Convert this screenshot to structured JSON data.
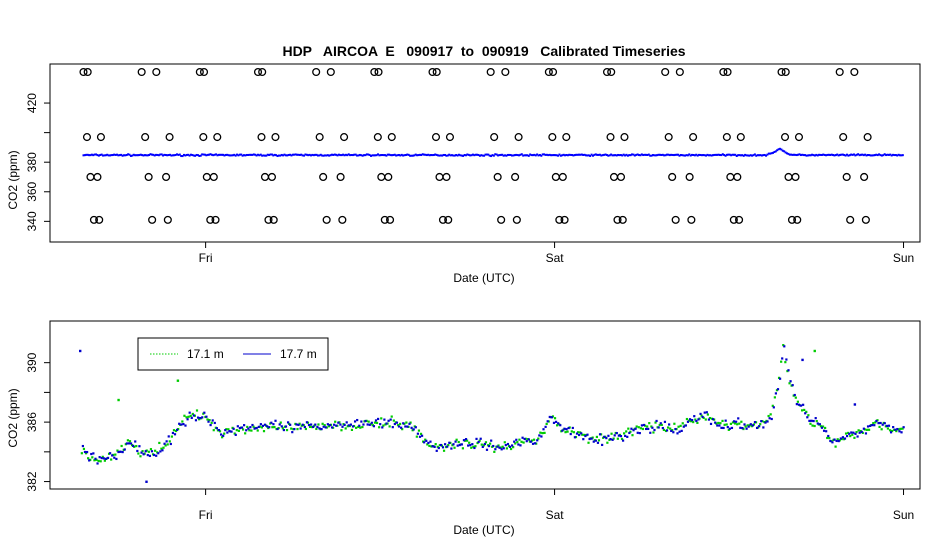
{
  "chart_data": [
    {
      "type": "scatter",
      "title": "HDP   AIRCOA  E   090917  to  090919   Calibrated Timeseries",
      "xlabel": "Date (UTC)",
      "ylabel": "CO2 (ppm)",
      "xlim": [
        -0.36,
        2.03
      ],
      "ylim": [
        335.5,
        441
      ],
      "x_ticks": [
        {
          "value": 0,
          "label": "Fri"
        },
        {
          "value": 1,
          "label": "Sat"
        },
        {
          "value": 2,
          "label": "Sun"
        }
      ],
      "y_ticks": [
        340,
        360,
        380,
        400,
        420
      ],
      "y_tick_labels": [
        "340",
        "360",
        "380",
        "420"
      ],
      "series": [
        {
          "role": "calibration-standards",
          "marker": "open-circle",
          "color": "#000000",
          "levels": [
            {
              "y": 441,
              "first_x": -0.35,
              "period": 0.1667,
              "count": 14,
              "offsets": [
                0,
                0.012
              ]
            },
            {
              "y": 397,
              "first_x": -0.34,
              "period": 0.1667,
              "count": 14,
              "offsets": [
                0,
                0.04
              ]
            },
            {
              "y": 370,
              "first_x": -0.33,
              "period": 0.1667,
              "count": 14,
              "offsets": [
                0,
                0.02
              ]
            },
            {
              "y": 341,
              "first_x": -0.32,
              "period": 0.1667,
              "count": 14,
              "offsets": [
                0,
                0.015
              ]
            }
          ]
        },
        {
          "role": "ambient",
          "marker": "dot",
          "color": "#0000ff",
          "baseline": 384.8
        }
      ]
    },
    {
      "type": "scatter",
      "title": "",
      "xlabel": "Date (UTC)",
      "ylabel": "CO2 (ppm)",
      "xlim": [
        -0.36,
        2.03
      ],
      "ylim": [
        381.5,
        392.4
      ],
      "x_ticks": [
        {
          "value": 0,
          "label": "Fri"
        },
        {
          "value": 1,
          "label": "Sat"
        },
        {
          "value": 2,
          "label": "Sun"
        }
      ],
      "y_ticks": [
        382,
        384,
        386,
        388,
        390
      ],
      "y_tick_labels": [
        "382",
        "386",
        "390"
      ],
      "legend": {
        "placement": "top-left"
      },
      "series": [
        {
          "name": "17.1 m",
          "color": "#00cc00",
          "line": "dotted"
        },
        {
          "name": "17.7 m",
          "color": "#0000cc",
          "line": "solid"
        }
      ],
      "profile": [
        [
          -0.36,
          384.2
        ],
        [
          -0.33,
          383.6
        ],
        [
          -0.29,
          383.5
        ],
        [
          -0.25,
          383.8
        ],
        [
          -0.22,
          384.8
        ],
        [
          -0.19,
          384.0
        ],
        [
          -0.16,
          383.8
        ],
        [
          -0.14,
          384.2
        ],
        [
          -0.11,
          384.6
        ],
        [
          -0.08,
          385.8
        ],
        [
          -0.05,
          386.3
        ],
        [
          -0.02,
          386.4
        ],
        [
          0.01,
          386.2
        ],
        [
          0.04,
          385.3
        ],
        [
          0.08,
          385.5
        ],
        [
          0.15,
          385.7
        ],
        [
          0.25,
          385.6
        ],
        [
          0.35,
          385.8
        ],
        [
          0.45,
          385.9
        ],
        [
          0.55,
          385.9
        ],
        [
          0.6,
          385.6
        ],
        [
          0.63,
          384.6
        ],
        [
          0.66,
          384.3
        ],
        [
          0.72,
          384.6
        ],
        [
          0.8,
          384.5
        ],
        [
          0.86,
          384.3
        ],
        [
          0.9,
          384.7
        ],
        [
          0.95,
          384.9
        ],
        [
          0.99,
          386.3
        ],
        [
          1.02,
          385.6
        ],
        [
          1.08,
          385.1
        ],
        [
          1.15,
          384.8
        ],
        [
          1.2,
          385.2
        ],
        [
          1.25,
          385.6
        ],
        [
          1.3,
          385.7
        ],
        [
          1.35,
          385.4
        ],
        [
          1.38,
          386.0
        ],
        [
          1.43,
          386.5
        ],
        [
          1.46,
          385.9
        ],
        [
          1.5,
          385.8
        ],
        [
          1.55,
          385.8
        ],
        [
          1.6,
          385.9
        ],
        [
          1.62,
          386.5
        ],
        [
          1.64,
          388.5
        ],
        [
          1.655,
          391.2
        ],
        [
          1.67,
          389.0
        ],
        [
          1.69,
          387.5
        ],
        [
          1.71,
          386.8
        ],
        [
          1.73,
          386.2
        ],
        [
          1.76,
          386.0
        ],
        [
          1.78,
          385.0
        ],
        [
          1.8,
          384.6
        ],
        [
          1.84,
          385.0
        ],
        [
          1.88,
          385.4
        ],
        [
          1.92,
          386.0
        ],
        [
          1.96,
          385.7
        ],
        [
          2.0,
          385.5
        ]
      ],
      "outliers": [
        [
          -0.36,
          390.8
        ],
        [
          -0.25,
          387.5
        ],
        [
          -0.17,
          382.0
        ],
        [
          -0.08,
          388.8
        ],
        [
          1.71,
          390.2
        ],
        [
          1.745,
          390.8
        ],
        [
          1.86,
          387.2
        ]
      ]
    }
  ]
}
